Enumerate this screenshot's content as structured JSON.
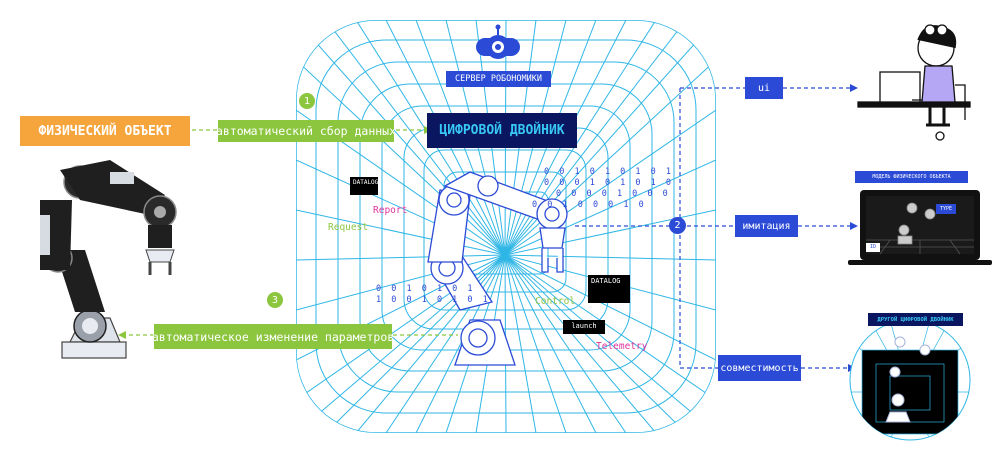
{
  "physical_object": "ФИЗИЧЕСКИЙ ОБЪЕКТ",
  "auto_collect": "автоматический сбор данных",
  "digital_twin": "ЦИФРОВОЙ ДВОЙНИК",
  "server": "СЕРВЕР РОБОНОМИКИ",
  "auto_change": "автоматическое изменение параметров",
  "steps": {
    "one": "1",
    "two": "2",
    "three": "3"
  },
  "floating_labels": {
    "report": "Report",
    "request": "Request",
    "control": "Control",
    "telemetry": "Telemetry"
  },
  "terminals": {
    "datalog_small": "DATALOG",
    "datalog_big": "DATALOG",
    "launch": "launch"
  },
  "binary": {
    "top": [
      "0 0 1 0 1 0 1 0 1",
      "0 0 0 1 0 1 0 1 0",
      "0 0 0 0 1 0 0 0",
      "0 0 1 0 0 0 1 0"
    ],
    "left": [
      "0 0 1 0 1 0 1",
      "1 0 0 1 0 1 0 1"
    ]
  },
  "outputs": {
    "ui": "ui",
    "imitation": "имитация",
    "compatibility": "совместимость"
  },
  "cards": {
    "model_title": "МОДЕЛЬ ФИЗИЧЕСКОГО ОБЪЕКТА",
    "model_badge": "ID",
    "model_tag": "TYPE",
    "other_twin": "ДРУГОЙ ЦИФРОВОЙ ДВОЙНИК"
  },
  "colors": {
    "orange": "#f6a53c",
    "green": "#8cc63f",
    "navy": "#0b1660",
    "blue": "#2b4bd6",
    "cyan": "#2fb6e6",
    "magenta": "#e0359d"
  }
}
